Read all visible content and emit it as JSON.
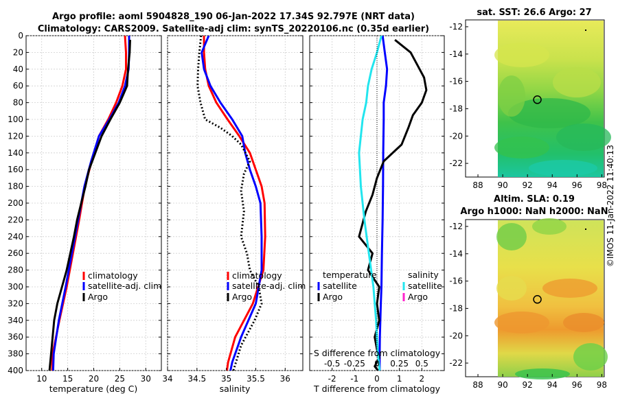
{
  "title": {
    "line1": "Argo profile: aoml 5904828_190 06-Jan-2022 17.34S 92.797E (NRT data)",
    "line2": "Climatology: CARS2009. Satellite-adj clim: synTS_20220106.nc (0.35d earlier)"
  },
  "colors": {
    "climatology": "#ff0000",
    "satellite": "#0000ff",
    "argo": "#000000",
    "salinity_sat": "#22e5ee",
    "salinity_argo": "#ff22cc"
  },
  "chart_data": [
    {
      "type": "line",
      "name": "temperature-profile",
      "xlabel": "temperature (deg C)",
      "ylabel": "",
      "xlim": [
        7,
        33
      ],
      "ylim": [
        400,
        0
      ],
      "xticks": [
        10,
        15,
        20,
        25,
        30
      ],
      "yticks": [
        0,
        20,
        40,
        60,
        80,
        100,
        120,
        140,
        160,
        180,
        200,
        220,
        240,
        260,
        280,
        300,
        320,
        340,
        360,
        380,
        400
      ],
      "grid": true,
      "legend": [
        "climatology",
        "satellite-adj. clim",
        "Argo"
      ],
      "series": [
        {
          "name": "climatology",
          "color": "#ff0000",
          "x": [
            26.0,
            26.2,
            26.2,
            25.5,
            24.3,
            22.8,
            21.0,
            19.6,
            18.3,
            17.2,
            16.0,
            14.8,
            13.4,
            12.1,
            12.0
          ],
          "depth": [
            0,
            20,
            40,
            60,
            80,
            100,
            120,
            150,
            180,
            220,
            260,
            300,
            340,
            380,
            400
          ]
        },
        {
          "name": "satellite-adj. clim",
          "color": "#0000ff",
          "x": [
            26.8,
            26.8,
            26.7,
            26.0,
            24.8,
            23.0,
            21.0,
            19.5,
            18.2,
            17.0,
            15.8,
            14.6,
            13.3,
            12.3,
            12.2
          ],
          "depth": [
            0,
            20,
            40,
            60,
            80,
            100,
            120,
            150,
            180,
            220,
            260,
            300,
            340,
            380,
            400
          ]
        },
        {
          "name": "Argo",
          "color": "#000000",
          "x": [
            27.0,
            26.9,
            26.6,
            26.4,
            25.0,
            23.2,
            21.5,
            20.3,
            19.1,
            18.4,
            17.6,
            16.8,
            16.2,
            15.5,
            14.8,
            13.9,
            13.0,
            12.4,
            11.8,
            11.5
          ],
          "depth": [
            5,
            20,
            40,
            60,
            80,
            100,
            120,
            140,
            160,
            180,
            200,
            220,
            240,
            260,
            280,
            300,
            320,
            340,
            380,
            400
          ]
        }
      ]
    },
    {
      "type": "line",
      "name": "salinity-profile",
      "xlabel": "salinity",
      "xlim": [
        34.0,
        36.3
      ],
      "ylim": [
        400,
        0
      ],
      "xticks": [
        34,
        34.5,
        35,
        35.5,
        36
      ],
      "grid": true,
      "legend": [
        "climatology",
        "satellite-adj. clim",
        "Argo"
      ],
      "series": [
        {
          "name": "climatology",
          "color": "#ff0000",
          "x": [
            34.62,
            34.62,
            34.64,
            34.7,
            34.83,
            35.02,
            35.22,
            35.4,
            35.5,
            35.6,
            35.65,
            35.66,
            35.63,
            35.45,
            35.15,
            35.03,
            35.01
          ],
          "depth": [
            0,
            20,
            40,
            60,
            80,
            100,
            120,
            140,
            160,
            180,
            200,
            240,
            280,
            320,
            360,
            390,
            400
          ]
        },
        {
          "name": "satellite-adj. clim",
          "color": "#0000ff",
          "x": [
            34.7,
            34.58,
            34.62,
            34.73,
            34.9,
            35.1,
            35.27,
            35.32,
            35.4,
            35.5,
            35.58,
            35.6,
            35.6,
            35.5,
            35.25,
            35.1,
            35.07
          ],
          "depth": [
            0,
            20,
            40,
            60,
            80,
            100,
            120,
            140,
            160,
            180,
            200,
            240,
            280,
            320,
            360,
            390,
            400
          ]
        },
        {
          "name": "Argo",
          "color": "#000000",
          "dotted": true,
          "x": [
            34.57,
            34.54,
            34.52,
            34.51,
            34.56,
            34.64,
            34.9,
            35.1,
            35.25,
            35.4,
            35.3,
            35.25,
            35.3,
            35.25,
            35.35,
            35.4,
            35.55,
            35.6,
            35.48,
            35.25,
            35.12
          ],
          "depth": [
            0,
            20,
            40,
            60,
            80,
            100,
            110,
            120,
            130,
            150,
            165,
            185,
            210,
            240,
            260,
            280,
            300,
            320,
            340,
            370,
            400
          ]
        }
      ]
    },
    {
      "type": "line",
      "name": "difference-profile",
      "xlabel": "T difference from climatology",
      "x2label": "S difference from climatology",
      "xlim": [
        -3,
        3
      ],
      "x2lim": [
        -0.75,
        0.75
      ],
      "ylim": [
        400,
        0
      ],
      "xticks": [
        -2,
        -1,
        0,
        1,
        2
      ],
      "x2ticks": [
        -0.5,
        -0.25,
        0,
        0.25,
        0.5
      ],
      "x2ticklabels": [
        "-0.5",
        "-0.25",
        "0",
        "0.25",
        "0.5"
      ],
      "grid": true,
      "legend_titles": [
        "temperature",
        "salinity"
      ],
      "legend": [
        "satellite",
        "Argo",
        "satellite",
        "Argo"
      ],
      "series": [
        {
          "name": "T satellite",
          "color": "#0000ff",
          "x": [
            0.25,
            0.3,
            0.35,
            0.45,
            0.4,
            0.3,
            0.3,
            0.28,
            0.27,
            0.25,
            0.22,
            0.2,
            0.17,
            0.15,
            0.13,
            0.12,
            0.12
          ],
          "depth": [
            0,
            10,
            20,
            40,
            60,
            80,
            100,
            140,
            180,
            220,
            260,
            300,
            320,
            340,
            360,
            380,
            400
          ]
        },
        {
          "name": "T Argo",
          "color": "#000000",
          "x": [
            0.8,
            1.5,
            1.8,
            2.1,
            2.2,
            2.0,
            1.6,
            1.4,
            1.1,
            0.3,
            0.0,
            -0.2,
            -0.5,
            -0.8,
            -0.2,
            -0.4,
            0.1,
            0.0,
            0.1,
            -0.1,
            0.0,
            0.1,
            -0.1,
            0.05
          ],
          "depth": [
            5,
            20,
            35,
            50,
            65,
            80,
            95,
            110,
            130,
            150,
            170,
            190,
            210,
            240,
            260,
            280,
            300,
            320,
            340,
            360,
            375,
            385,
            395,
            400
          ]
        },
        {
          "name": "S satellite",
          "color": "#22e5ee",
          "x": [
            0.05,
            0.0,
            -0.06,
            -0.1,
            -0.12,
            -0.16,
            -0.18,
            -0.2,
            -0.18,
            -0.14,
            -0.09,
            -0.04,
            -0.01,
            0.01,
            0.03
          ],
          "depth": [
            0,
            20,
            40,
            60,
            80,
            100,
            120,
            140,
            180,
            220,
            260,
            300,
            340,
            380,
            400
          ]
        }
      ]
    },
    {
      "type": "heatmap",
      "name": "sst-map",
      "title": "sat. SST: 26.6 Argo: 27",
      "xticks": [
        88,
        90,
        92,
        94,
        96,
        98
      ],
      "yticks": [
        -12,
        -14,
        -16,
        -18,
        -20,
        -22
      ],
      "xlim": [
        87,
        98.2
      ],
      "ylim": [
        -23,
        -11.5
      ],
      "data_xlim": [
        90,
        98
      ],
      "marker": {
        "lon": 92.797,
        "lat": -17.34
      }
    },
    {
      "type": "heatmap",
      "name": "sla-map",
      "title_line1": "Altim. SLA: 0.19",
      "title_line2": "Argo h1000: NaN h2000: NaN",
      "xticks": [
        88,
        90,
        92,
        94,
        96,
        98
      ],
      "yticks": [
        -12,
        -14,
        -16,
        -18,
        -20,
        -22
      ],
      "xlim": [
        87,
        98.2
      ],
      "ylim": [
        -23,
        -11.5
      ],
      "data_xlim": [
        90,
        98
      ],
      "marker": {
        "lon": 92.797,
        "lat": -17.34
      }
    }
  ],
  "credit": "©IMOS 11-Jan-2022 11:40:13"
}
